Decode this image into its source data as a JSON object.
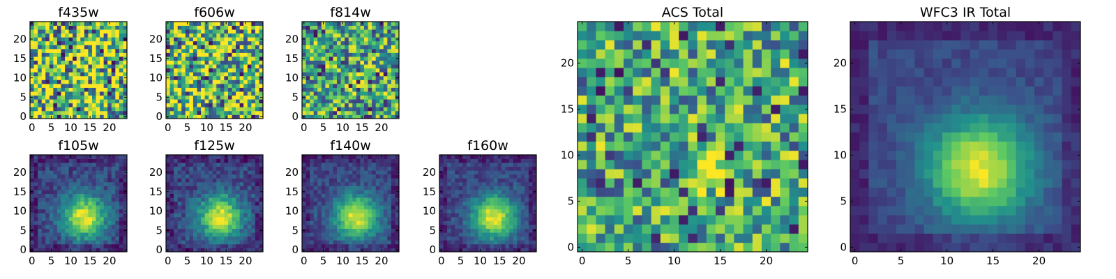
{
  "chart_data": [
    {
      "type": "heatmap",
      "title": "f435w",
      "pattern": "noise",
      "seed": 1,
      "noise": 0.55,
      "peak": 0.12,
      "xlim": [
        0,
        24
      ],
      "ylim": [
        0,
        24
      ],
      "xticks": [
        0,
        5,
        10,
        15,
        20
      ],
      "yticks": [
        0,
        5,
        10,
        15,
        20
      ],
      "xtick_labels": [
        "0",
        "5",
        "10",
        "15",
        "20"
      ],
      "ytick_labels": [
        "0",
        "5",
        "10",
        "15",
        "20"
      ]
    },
    {
      "type": "heatmap",
      "title": "f606w",
      "pattern": "noise",
      "seed": 2,
      "noise": 0.5,
      "peak": 0.22,
      "xlim": [
        0,
        24
      ],
      "ylim": [
        0,
        24
      ],
      "xticks": [
        0,
        5,
        10,
        15,
        20
      ],
      "yticks": [
        0,
        5,
        10,
        15,
        20
      ],
      "xtick_labels": [
        "0",
        "5",
        "10",
        "15",
        "20"
      ],
      "ytick_labels": [
        "0",
        "5",
        "10",
        "15",
        "20"
      ]
    },
    {
      "type": "heatmap",
      "title": "f814w",
      "pattern": "faint-source",
      "seed": 3,
      "noise": 0.4,
      "peak": 0.55,
      "xlim": [
        0,
        24
      ],
      "ylim": [
        0,
        24
      ],
      "xticks": [
        0,
        5,
        10,
        15,
        20
      ],
      "yticks": [
        0,
        5,
        10,
        15,
        20
      ],
      "xtick_labels": [
        "0",
        "5",
        "10",
        "15",
        "20"
      ],
      "ytick_labels": [
        "0",
        "5",
        "10",
        "15",
        "20"
      ]
    },
    {
      "type": "heatmap",
      "title": "f105w",
      "pattern": "source",
      "seed": 4,
      "noise": 0.12,
      "peak": 0.85,
      "xlim": [
        0,
        24
      ],
      "ylim": [
        0,
        24
      ],
      "xticks": [
        0,
        5,
        10,
        15,
        20
      ],
      "yticks": [
        0,
        5,
        10,
        15,
        20
      ],
      "xtick_labels": [
        "0",
        "5",
        "10",
        "15",
        "20"
      ],
      "ytick_labels": [
        "0",
        "5",
        "10",
        "15",
        "20"
      ]
    },
    {
      "type": "heatmap",
      "title": "f125w",
      "pattern": "source",
      "seed": 5,
      "noise": 0.12,
      "peak": 0.85,
      "xlim": [
        0,
        24
      ],
      "ylim": [
        0,
        24
      ],
      "xticks": [
        0,
        5,
        10,
        15,
        20
      ],
      "yticks": [
        0,
        5,
        10,
        15,
        20
      ],
      "xtick_labels": [
        "0",
        "5",
        "10",
        "15",
        "20"
      ],
      "ytick_labels": [
        "0",
        "5",
        "10",
        "15",
        "20"
      ]
    },
    {
      "type": "heatmap",
      "title": "f140w",
      "pattern": "source",
      "seed": 6,
      "noise": 0.1,
      "peak": 0.85,
      "xlim": [
        0,
        24
      ],
      "ylim": [
        0,
        24
      ],
      "xticks": [
        0,
        5,
        10,
        15,
        20
      ],
      "yticks": [
        0,
        5,
        10,
        15,
        20
      ],
      "xtick_labels": [
        "0",
        "5",
        "10",
        "15",
        "20"
      ],
      "ytick_labels": [
        "0",
        "5",
        "10",
        "15",
        "20"
      ]
    },
    {
      "type": "heatmap",
      "title": "f160w",
      "pattern": "source",
      "seed": 7,
      "noise": 0.1,
      "peak": 0.88,
      "xlim": [
        0,
        24
      ],
      "ylim": [
        0,
        24
      ],
      "xticks": [
        0,
        5,
        10,
        15,
        20
      ],
      "yticks": [
        0,
        5,
        10,
        15,
        20
      ],
      "xtick_labels": [
        "0",
        "5",
        "10",
        "15",
        "20"
      ],
      "ytick_labels": [
        "0",
        "5",
        "10",
        "15",
        "20"
      ]
    },
    {
      "type": "heatmap",
      "title": "ACS Total",
      "pattern": "noisy-source",
      "seed": 8,
      "noise": 0.38,
      "peak": 0.6,
      "xlim": [
        0,
        24
      ],
      "ylim": [
        0,
        24
      ],
      "xticks": [
        0,
        5,
        10,
        15,
        20
      ],
      "yticks": [
        0,
        5,
        10,
        15,
        20
      ],
      "xtick_labels": [
        "0",
        "5",
        "10",
        "15",
        "20"
      ],
      "ytick_labels": [
        "0",
        "5",
        "10",
        "15",
        "20"
      ]
    },
    {
      "type": "heatmap",
      "title": "WFC3 IR Total",
      "pattern": "source",
      "seed": 9,
      "noise": 0.06,
      "peak": 0.9,
      "xlim": [
        0,
        24
      ],
      "ylim": [
        0,
        24
      ],
      "xticks": [
        0,
        5,
        10,
        15,
        20
      ],
      "yticks": [
        0,
        5,
        10,
        15,
        20
      ],
      "xtick_labels": [
        "0",
        "5",
        "10",
        "15",
        "20"
      ],
      "ytick_labels": [
        "0",
        "5",
        "10",
        "15",
        "20"
      ]
    }
  ],
  "source_center": [
    13.5,
    8.5
  ],
  "colormap": [
    "#440154",
    "#3b528b",
    "#21918c",
    "#5ec962",
    "#fde725"
  ]
}
